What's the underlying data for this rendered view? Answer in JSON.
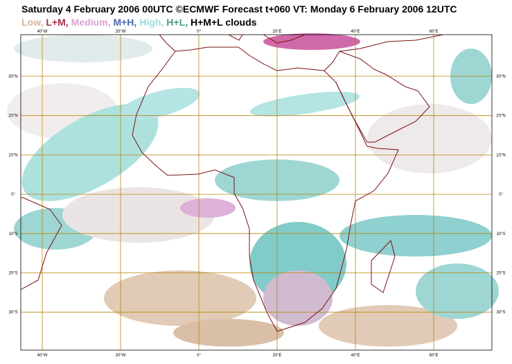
{
  "header": {
    "title": "Saturday 4 February 2006 00UTC ©ECMWF Forecast t+060 VT: Monday 6 February 2006 12UTC",
    "legend": [
      {
        "label": "Low,",
        "color": "#d4b49a"
      },
      {
        "label": "L+M,",
        "color": "#a8304c"
      },
      {
        "label": "Medium,",
        "color": "#d8a4d4"
      },
      {
        "label": "M+H,",
        "color": "#4c68ac"
      },
      {
        "label": "High,",
        "color": "#98dcdc"
      },
      {
        "label": "H+L,",
        "color": "#4c9c78"
      },
      {
        "label": "H+M+L clouds",
        "color": "#000000"
      }
    ]
  },
  "map": {
    "lon_labels": [
      "40°W",
      "20°W",
      "0°",
      "20°E",
      "40°E",
      "60°E"
    ],
    "lat_labels": [
      "30°N",
      "20°N",
      "10°N",
      "0°",
      "10°S",
      "20°S",
      "30°S"
    ]
  }
}
